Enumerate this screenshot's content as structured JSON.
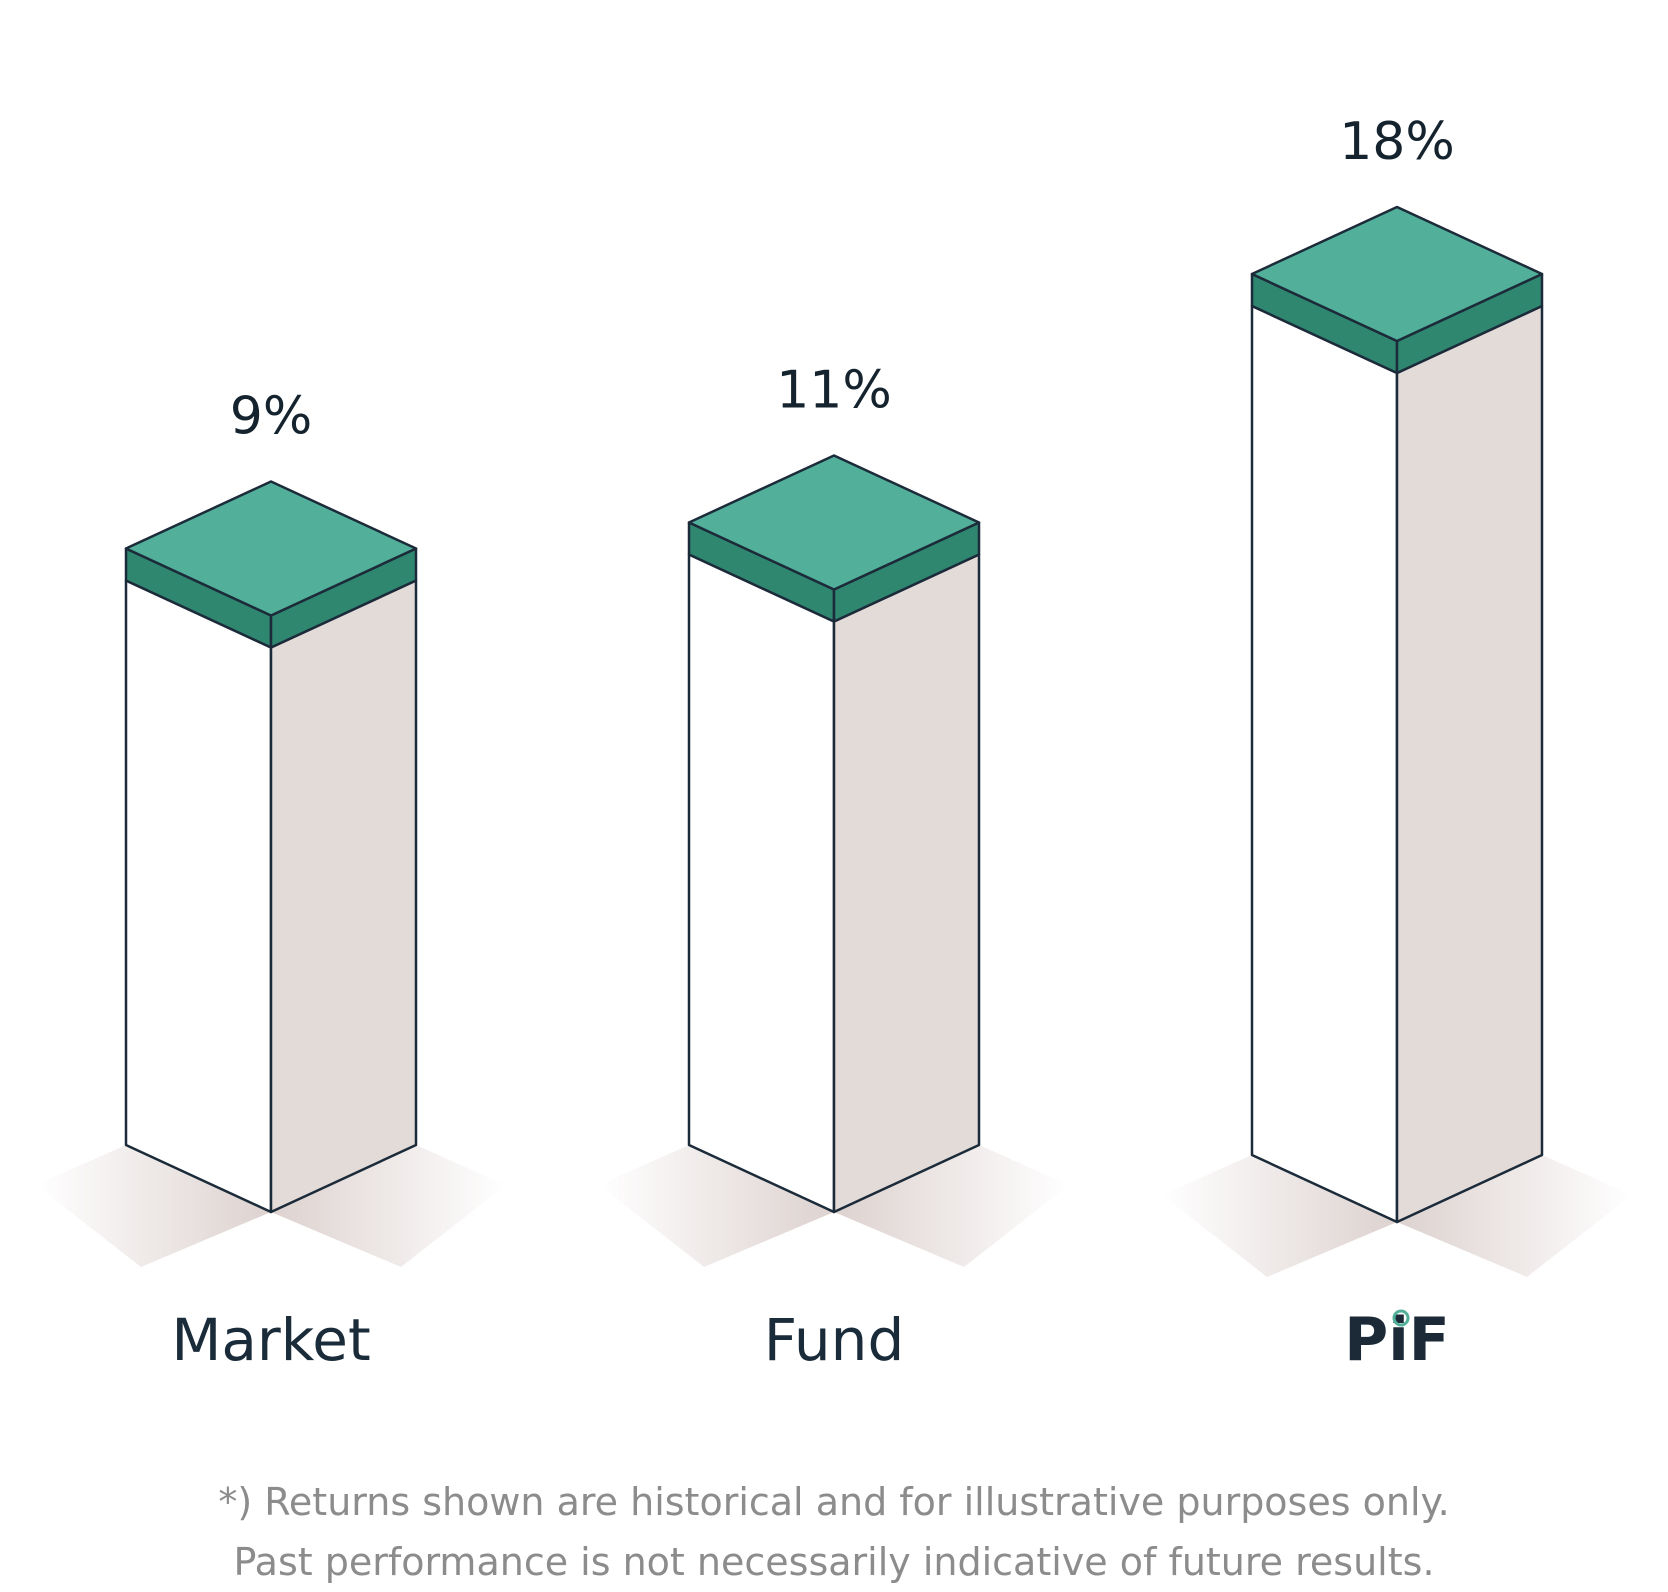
{
  "colors": {
    "accent": "#52b09a",
    "accent_dark": "#2f8770",
    "bar_front": "#ffffff",
    "bar_side": "#e3dbd8",
    "outline": "#1c2b3a",
    "grid": "#5cb8a0"
  },
  "chart_data": {
    "type": "bar",
    "title": "",
    "xlabel": "",
    "ylabel": "",
    "categories": [
      "Market",
      "Fund",
      "PiF"
    ],
    "values": [
      9,
      11,
      18
    ],
    "value_labels": [
      "9%",
      "11%",
      "18%"
    ],
    "grid": true,
    "legend": "none"
  },
  "footnote": {
    "line1": "*) Returns shown are historical and for illustrative purposes only.",
    "line2": "Past performance is not necessarily indicative of future results."
  }
}
